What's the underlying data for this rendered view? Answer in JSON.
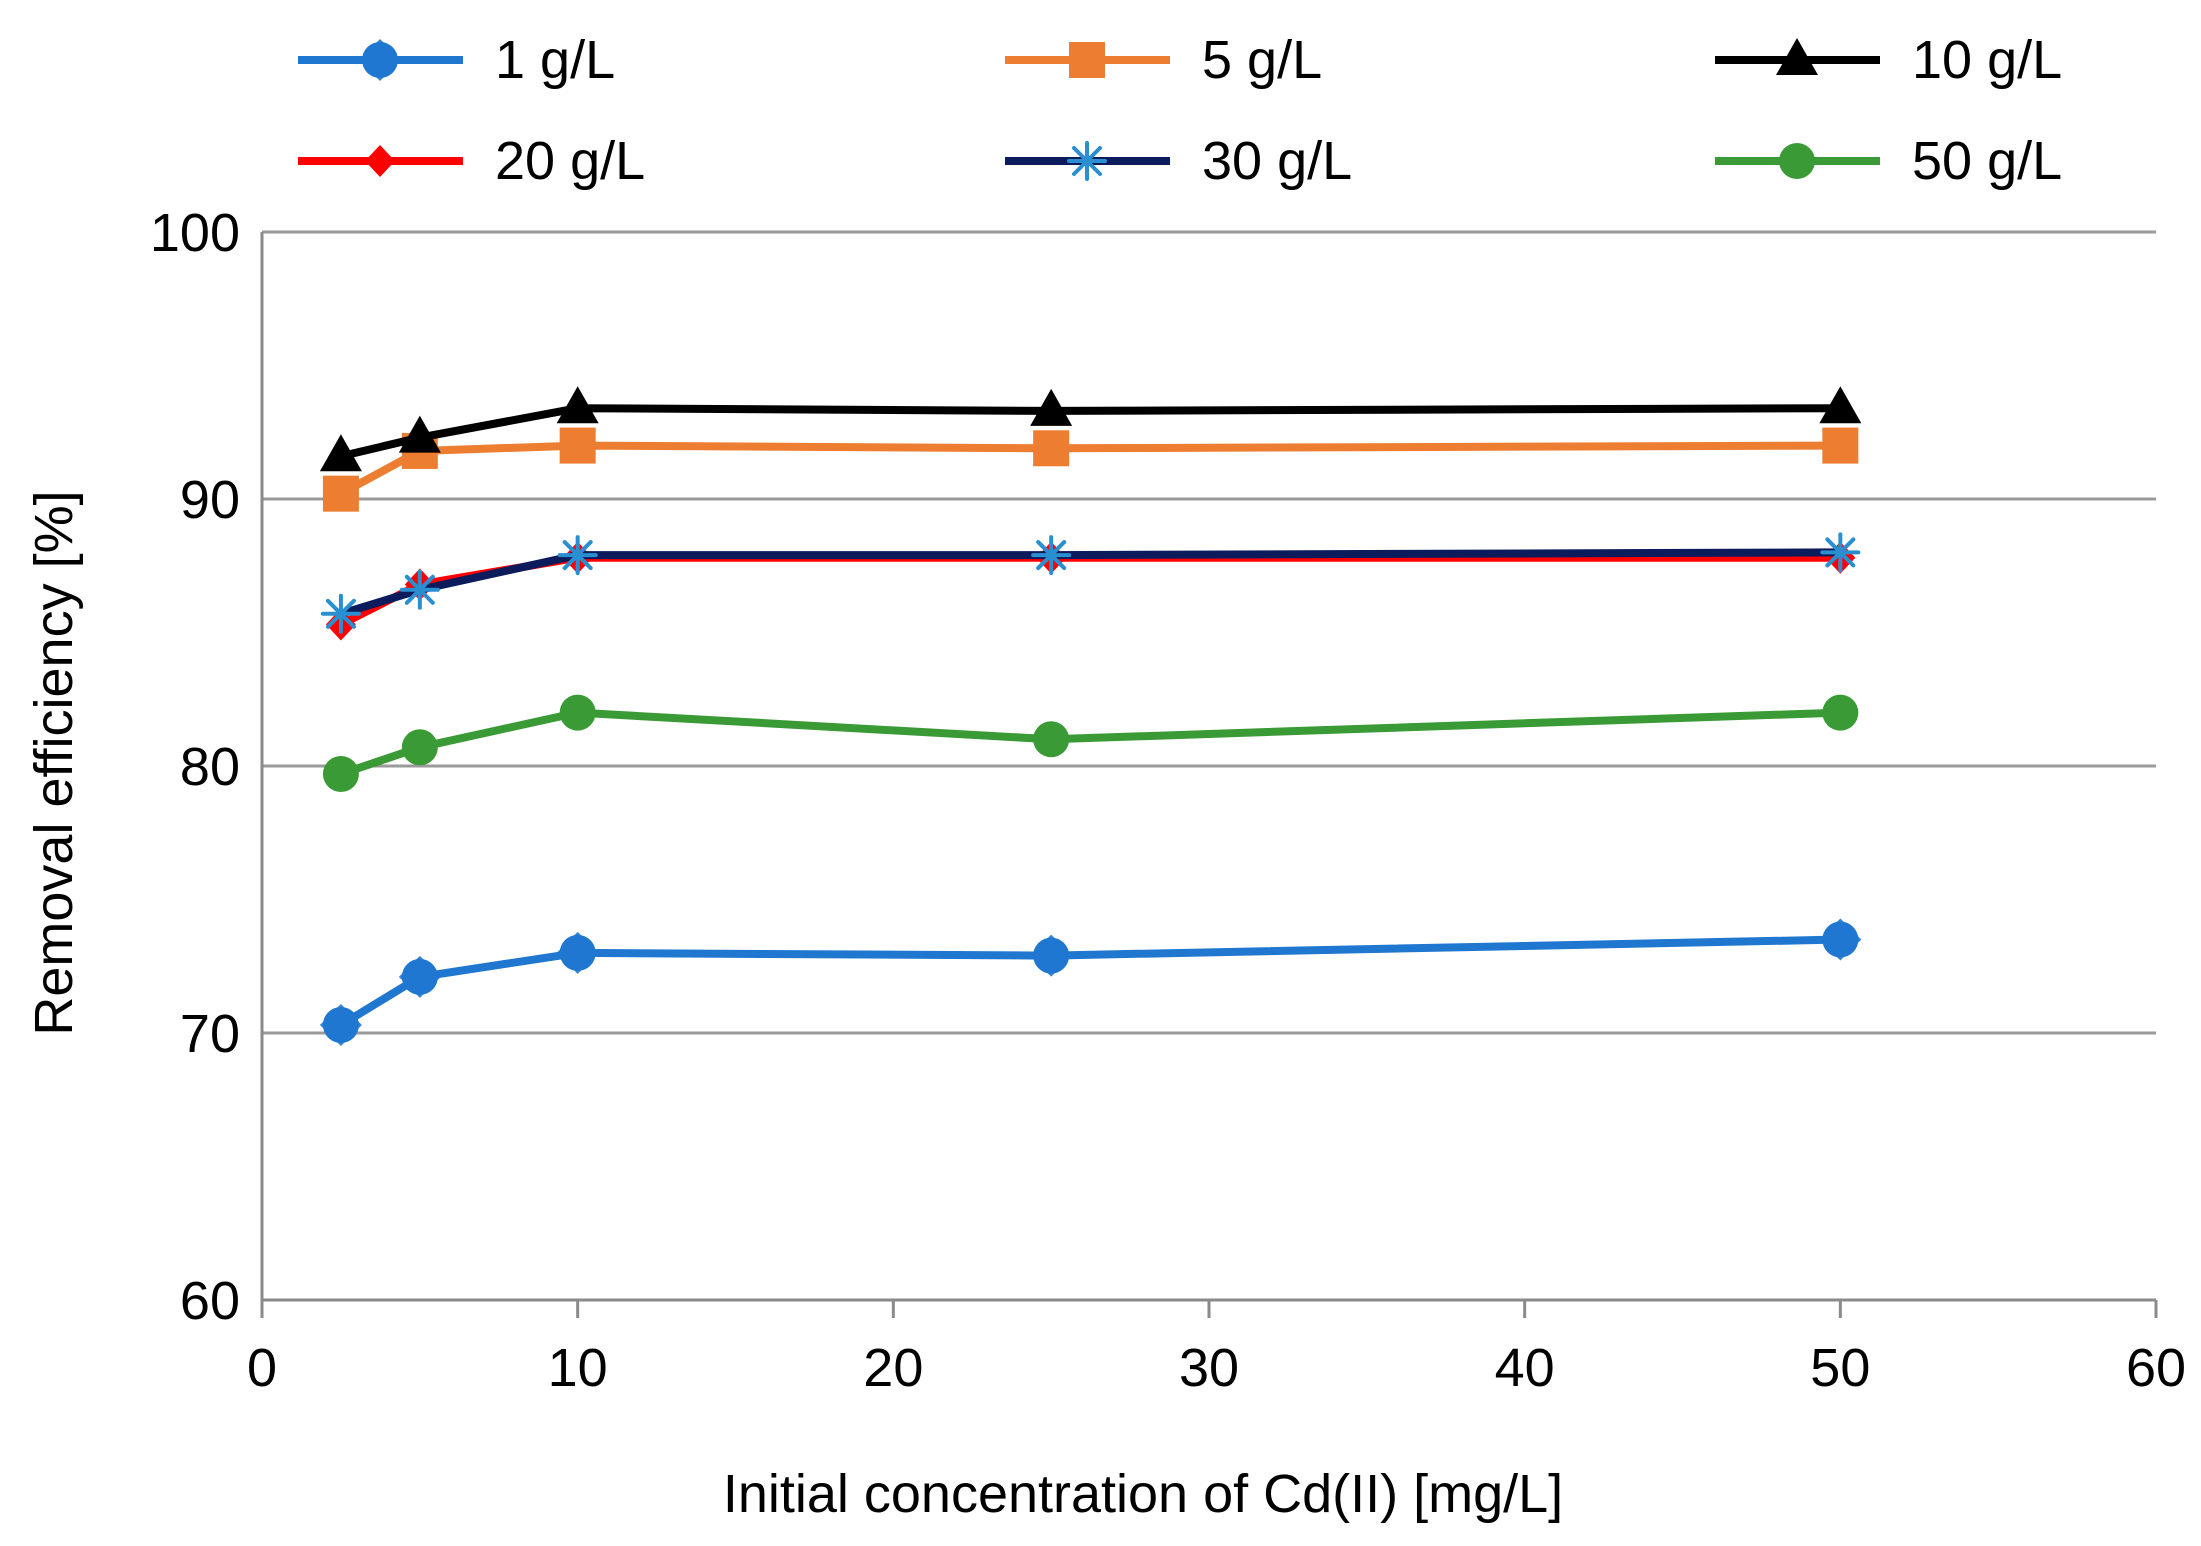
{
  "chart_data": {
    "type": "line",
    "title": "",
    "xlabel": "Initial concentration of Cd(II) [mg/L]",
    "ylabel": "Removal  efficiency  [%]",
    "xlim": [
      0,
      60
    ],
    "ylim": [
      60,
      100
    ],
    "xticks": [
      0,
      10,
      20,
      30,
      40,
      50,
      60
    ],
    "yticks": [
      60,
      70,
      80,
      90,
      100
    ],
    "grid": "horizontal",
    "legend_position": "top",
    "x": [
      2.5,
      5,
      10,
      25,
      50
    ],
    "series": [
      {
        "name": "1 g/L",
        "color": "#1f77d0",
        "marker": "diamond-circle",
        "values": [
          70.3,
          72.1,
          73.0,
          72.9,
          73.5
        ]
      },
      {
        "name": "5 g/L",
        "color": "#ed7d31",
        "marker": "square",
        "values": [
          90.2,
          91.8,
          92.0,
          91.9,
          92.0
        ]
      },
      {
        "name": "10 g/L",
        "color": "#000000",
        "marker": "triangle",
        "values": [
          91.6,
          92.3,
          93.4,
          93.3,
          93.4
        ]
      },
      {
        "name": "20 g/L",
        "color": "#ff0000",
        "marker": "diamond",
        "values": [
          85.3,
          86.8,
          87.8,
          87.8,
          87.8
        ]
      },
      {
        "name": "30 g/L",
        "color": "#0b1b5c",
        "marker": "star",
        "values": [
          85.7,
          86.6,
          87.9,
          87.9,
          88.0
        ]
      },
      {
        "name": "50 g/L",
        "color": "#3a9a35",
        "marker": "circle",
        "values": [
          79.7,
          80.7,
          82.0,
          81.0,
          82.0
        ]
      }
    ]
  }
}
